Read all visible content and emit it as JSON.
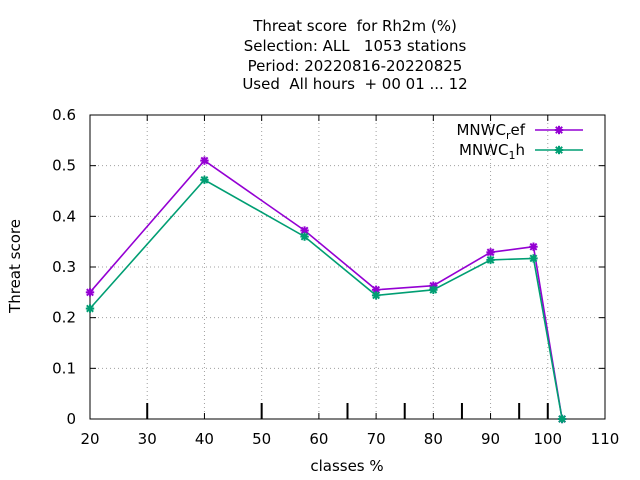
{
  "chart_data": {
    "type": "line",
    "title_lines": [
      "Threat score  for Rh2m (%)",
      "Selection: ALL   1053 stations",
      "Period: 20220816-20220825",
      "Used  All hours  + 00 01 ... 12"
    ],
    "xlabel": "classes %",
    "ylabel": "Threat score",
    "xlim": [
      20,
      110
    ],
    "ylim": [
      0,
      0.6
    ],
    "xticks": [
      20,
      30,
      40,
      50,
      60,
      70,
      80,
      90,
      100,
      110
    ],
    "yticks": [
      0,
      0.1,
      0.2,
      0.3,
      0.4,
      0.5,
      0.6
    ],
    "class_marks": [
      30,
      50,
      65,
      75,
      85,
      95,
      100
    ],
    "grid": true,
    "legend_position": "top-right",
    "series": [
      {
        "name": "MNWC",
        "subscript": "r",
        "suffix": "ef",
        "color": "#9400d3",
        "x": [
          20,
          40,
          57.5,
          70,
          80,
          90,
          97.5,
          102.5
        ],
        "y": [
          0.25,
          0.51,
          0.372,
          0.255,
          0.263,
          0.329,
          0.34,
          0
        ]
      },
      {
        "name": "MNWC",
        "subscript": "1",
        "suffix": "h",
        "color": "#009e73",
        "x": [
          20,
          40,
          57.5,
          70,
          80,
          90,
          97.5,
          102.5
        ],
        "y": [
          0.218,
          0.472,
          0.36,
          0.244,
          0.255,
          0.314,
          0.317,
          0
        ]
      }
    ]
  }
}
